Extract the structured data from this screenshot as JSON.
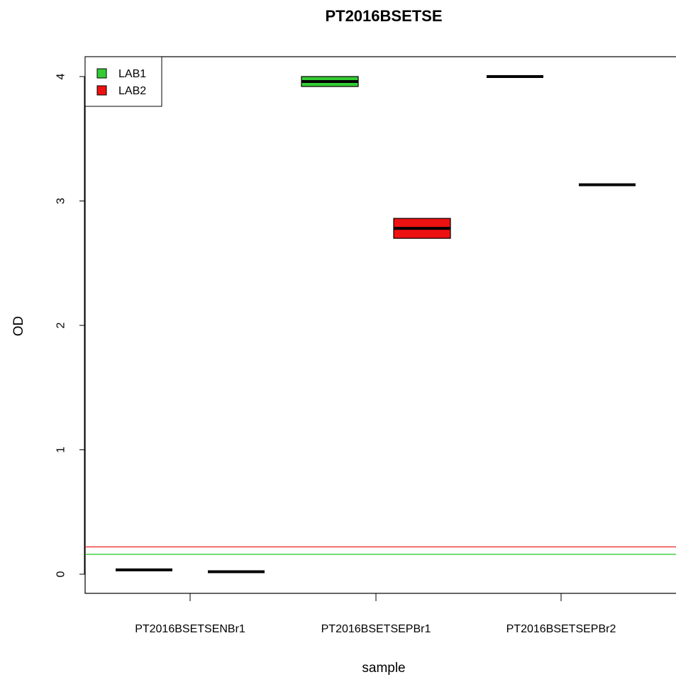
{
  "chart_data": {
    "type": "box",
    "title": "PT2016BSETSE",
    "xlabel": "sample",
    "ylabel": "OD",
    "categories": [
      "PT2016BSETSENBr1",
      "PT2016BSETSEPBr1",
      "PT2016BSETSEPBr2"
    ],
    "ylim": [
      -0.15,
      4.17
    ],
    "yticks": [
      "0",
      "1",
      "2",
      "3",
      "4"
    ],
    "legend": {
      "position": "top-left",
      "entries": [
        {
          "name": "LAB1",
          "color": "#33cc33"
        },
        {
          "name": "LAB2",
          "color": "#ee1111"
        }
      ]
    },
    "series": [
      {
        "name": "LAB1",
        "color": "#33cc33",
        "boxes": [
          {
            "category": "PT2016BSETSENBr1",
            "q1": 0.035,
            "median": 0.035,
            "q3": 0.035
          },
          {
            "category": "PT2016BSETSEPBr1",
            "q1": 3.92,
            "median": 3.96,
            "q3": 4.0
          },
          {
            "category": "PT2016BSETSEPBr2",
            "q1": 4.0,
            "median": 4.0,
            "q3": 4.0
          }
        ]
      },
      {
        "name": "LAB2",
        "color": "#ee1111",
        "boxes": [
          {
            "category": "PT2016BSETSENBr1",
            "q1": 0.02,
            "median": 0.02,
            "q3": 0.02
          },
          {
            "category": "PT2016BSETSEPBr1",
            "q1": 2.7,
            "median": 2.78,
            "q3": 2.86
          },
          {
            "category": "PT2016BSETSEPBr2",
            "q1": 3.13,
            "median": 3.13,
            "q3": 3.13
          }
        ]
      }
    ],
    "cutoff_lines": [
      {
        "series": "LAB2",
        "value": 0.22,
        "color": "#ee3333"
      },
      {
        "series": "LAB1",
        "value": 0.16,
        "color": "#33cc33"
      }
    ]
  }
}
